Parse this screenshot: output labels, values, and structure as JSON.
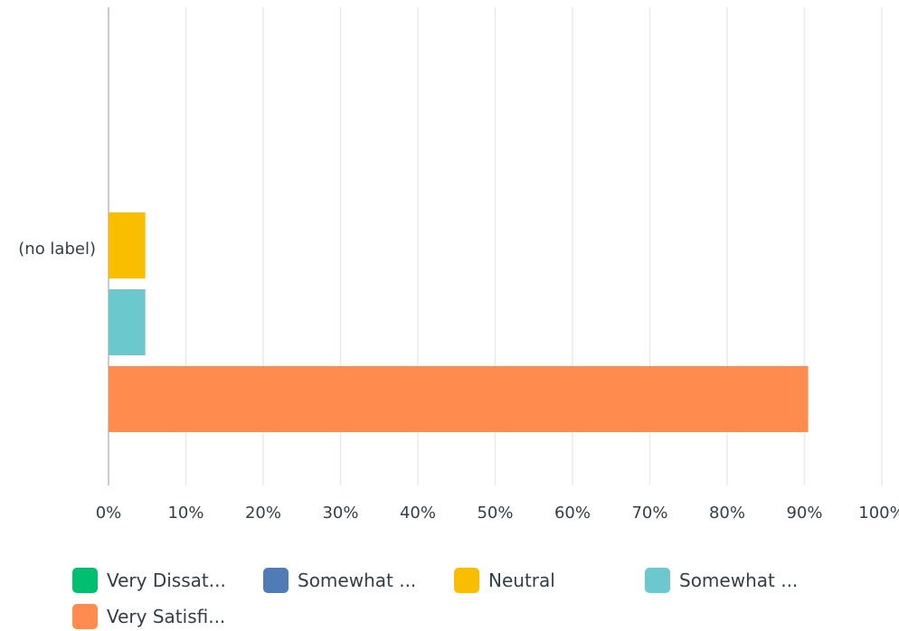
{
  "chart_data": {
    "type": "bar",
    "orientation": "horizontal",
    "categories": [
      "(no label)"
    ],
    "series": [
      {
        "name": "Very Dissat...",
        "values": [
          0
        ],
        "color": "#00bf6f"
      },
      {
        "name": "Somewhat ...",
        "values": [
          0
        ],
        "color": "#507cb6"
      },
      {
        "name": "Neutral",
        "values": [
          4.76
        ],
        "color": "#f9be00"
      },
      {
        "name": "Somewhat ...",
        "values": [
          4.76
        ],
        "color": "#6bc8cd"
      },
      {
        "name": "Very Satisfi...",
        "values": [
          90.48
        ],
        "color": "#ff8b4f"
      }
    ],
    "xlim": [
      0,
      100
    ],
    "x_ticks": [
      "0%",
      "10%",
      "20%",
      "30%",
      "40%",
      "50%",
      "60%",
      "70%",
      "80%",
      "90%",
      "100%"
    ],
    "grid": true,
    "legend_position": "bottom"
  }
}
